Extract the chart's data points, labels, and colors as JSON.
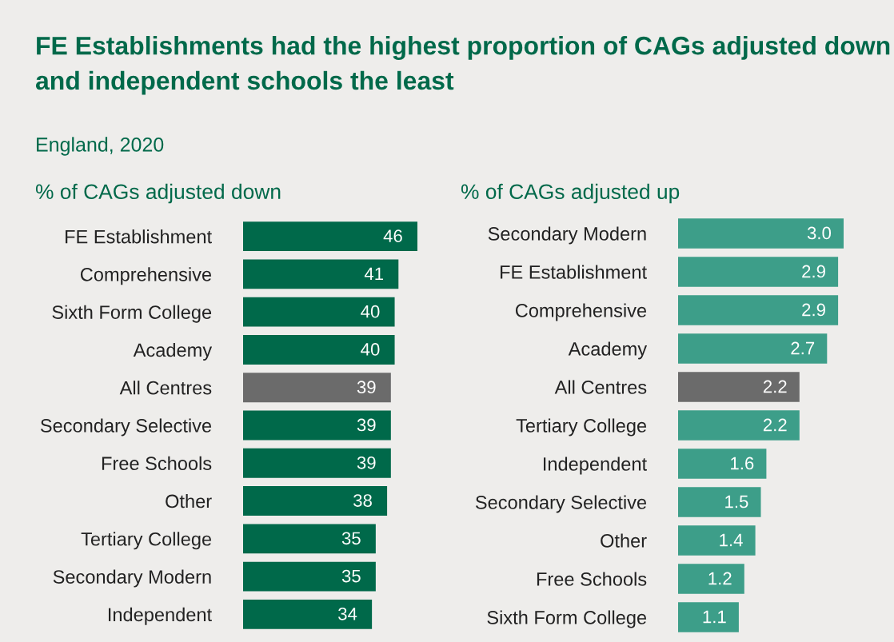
{
  "chart_data": [
    {
      "type": "bar",
      "orientation": "horizontal",
      "title": "FE Establishments had the highest proportion of CAGs adjusted down and independent schools the least",
      "subtitle": "England, 2020",
      "annotations": [
        "% of CAGs adjusted down"
      ],
      "categories": [
        "FE Establishment",
        "Comprehensive",
        "Sixth Form College",
        "Academy",
        "All Centres",
        "Secondary Selective",
        "Free Schools",
        "Other",
        "Tertiary College",
        "Secondary Modern",
        "Independent"
      ],
      "values": [
        46,
        41,
        40,
        40,
        39,
        39,
        39,
        38,
        35,
        35,
        34
      ],
      "colors": [
        "#00694a",
        "#00694a",
        "#00694a",
        "#00694a",
        "#6b6b6b",
        "#00694a",
        "#00694a",
        "#00694a",
        "#00694a",
        "#00694a",
        "#00694a"
      ],
      "data_labels": true,
      "tick_labels": "y"
    },
    {
      "type": "bar",
      "orientation": "horizontal",
      "title": "% of CAGs adjusted up",
      "categories": [
        "Secondary Modern",
        "FE Establishment",
        "Comprehensive",
        "Academy",
        "All Centres",
        "Tertiary College",
        "Independent",
        "Secondary Selective",
        "Other",
        "Free Schools",
        "Sixth Form College"
      ],
      "values": [
        3.0,
        2.9,
        2.9,
        2.7,
        2.2,
        2.2,
        1.6,
        1.5,
        1.4,
        1.2,
        1.1
      ],
      "value_labels": [
        "3.0",
        "2.9",
        "2.9",
        "2.7",
        "2.2",
        "2.2",
        "1.6",
        "1.5",
        "1.4",
        "1.2",
        "1.1"
      ],
      "colors": [
        "#3d9e89",
        "#3d9e89",
        "#3d9e89",
        "#3d9e89",
        "#6b6b6b",
        "#3d9e89",
        "#3d9e89",
        "#3d9e89",
        "#3d9e89",
        "#3d9e89",
        "#3d9e89"
      ],
      "tick_labels": "y"
    }
  ]
}
